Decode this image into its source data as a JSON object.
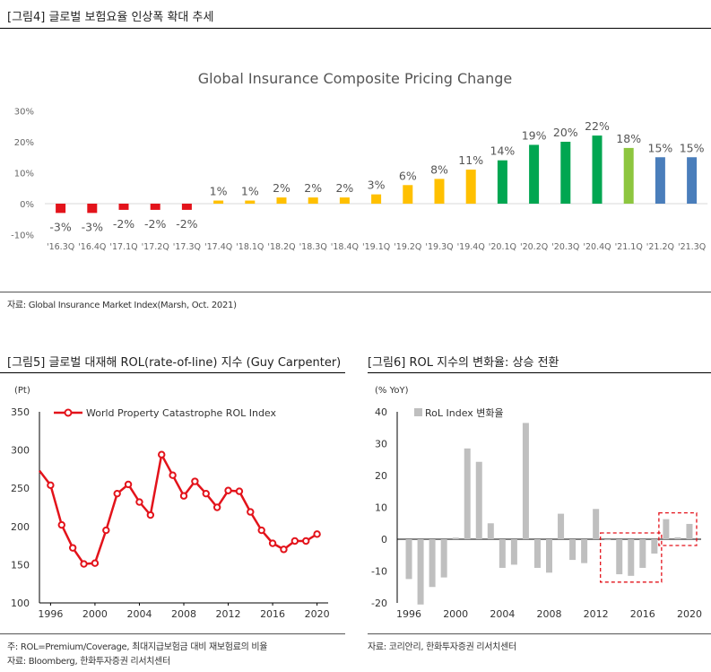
{
  "fig4": {
    "caption": "[그림4]    글로벌 보험요율 인상폭 확대 추세",
    "source": "자료: Global Insurance Market Index(Marsh, Oct. 2021)"
  },
  "fig5": {
    "caption": "[그림5]    글로벌 대재해 ROL(rate-of-line) 지수 (Guy Carpenter)",
    "note": "주: ROL=Premium/Coverage, 최대지급보험금 대비 재보험료의 비율",
    "source": "자료: Bloomberg, 한화투자증권 리서치센터"
  },
  "fig6": {
    "caption": "[그림6]    ROL 지수의 변화율: 상승 전환",
    "source": "자료: 코리안리, 한화투자증권 리서치센터"
  },
  "colors": {
    "red": "#e3131b",
    "yellow": "#ffc000",
    "green": "#00a651",
    "lightgreen": "#8dc63f",
    "blue": "#4a7ebb",
    "gray": "#bfbfbf",
    "line": "#e3131b"
  },
  "chart_data": [
    {
      "id": "fig4",
      "type": "bar",
      "title": "Global Insurance Composite Pricing Change",
      "categories": [
        "'16.3Q",
        "'16.4Q",
        "'17.1Q",
        "'17.2Q",
        "'17.3Q",
        "'17.4Q",
        "'18.1Q",
        "'18.2Q",
        "'18.3Q",
        "'18.4Q",
        "'19.1Q",
        "'19.2Q",
        "'19.3Q",
        "'19.4Q",
        "'20.1Q",
        "'20.2Q",
        "'20.3Q",
        "'20.4Q",
        "'21.1Q",
        "'21.2Q",
        "'21.3Q"
      ],
      "values": [
        -3,
        -3,
        -2,
        -2,
        -2,
        1,
        1,
        2,
        2,
        2,
        3,
        6,
        8,
        11,
        14,
        19,
        20,
        22,
        18,
        15,
        15
      ],
      "data_labels": [
        "-3%",
        "-3%",
        "-2%",
        "-2%",
        "-2%",
        "1%",
        "1%",
        "2%",
        "2%",
        "2%",
        "3%",
        "6%",
        "8%",
        "11%",
        "14%",
        "19%",
        "20%",
        "22%",
        "18%",
        "15%",
        "15%"
      ],
      "bar_colors": [
        "red",
        "red",
        "red",
        "red",
        "red",
        "yellow",
        "yellow",
        "yellow",
        "yellow",
        "yellow",
        "yellow",
        "yellow",
        "yellow",
        "yellow",
        "green",
        "green",
        "green",
        "green",
        "lightgreen",
        "blue",
        "blue"
      ],
      "ylim": [
        -10,
        30
      ],
      "yticks": [
        -10,
        0,
        10,
        20,
        30
      ],
      "ytick_labels": [
        "-10%",
        "0%",
        "10%",
        "20%",
        "30%"
      ],
      "grid": false
    },
    {
      "id": "fig5",
      "type": "line",
      "ylabel": "(Pt)",
      "series": [
        {
          "name": "World Property Catastrophe ROL Index",
          "x": [
            1995,
            1996,
            1997,
            1998,
            1999,
            2000,
            2001,
            2002,
            2003,
            2004,
            2005,
            2006,
            2007,
            2008,
            2009,
            2010,
            2011,
            2012,
            2013,
            2014,
            2015,
            2016,
            2017,
            2018,
            2019,
            2020
          ],
          "values": [
            273,
            254,
            202,
            172,
            151,
            152,
            195,
            243,
            255,
            232,
            215,
            294,
            267,
            240,
            259,
            243,
            225,
            247,
            246,
            219,
            195,
            178,
            170,
            181,
            181,
            190
          ]
        }
      ],
      "xlim": [
        1995,
        2021
      ],
      "xticks": [
        1996,
        2000,
        2004,
        2008,
        2012,
        2016,
        2020
      ],
      "ylim": [
        100,
        350
      ],
      "yticks": [
        100,
        150,
        200,
        250,
        300,
        350
      ],
      "legend": "top"
    },
    {
      "id": "fig6",
      "type": "bar",
      "ylabel": "(% YoY)",
      "series": [
        {
          "name": "RoL Index 변화율",
          "x": [
            1996,
            1997,
            1998,
            1999,
            2000,
            2001,
            2002,
            2003,
            2004,
            2005,
            2006,
            2007,
            2008,
            2009,
            2010,
            2011,
            2012,
            2013,
            2014,
            2015,
            2016,
            2017,
            2018,
            2019,
            2020
          ],
          "values": [
            -12.5,
            -20.5,
            -15,
            -12,
            0.5,
            28.5,
            24.3,
            5,
            -9,
            -8,
            36.5,
            -9,
            -10.5,
            8,
            -6.5,
            -7.5,
            9.5,
            -0.3,
            -11,
            -11.5,
            -9,
            -4.5,
            6.3,
            0.6,
            4.8
          ]
        }
      ],
      "xlim": [
        1995,
        2021
      ],
      "xticks": [
        1996,
        2000,
        2004,
        2008,
        2012,
        2016,
        2020
      ],
      "ylim": [
        -20,
        40
      ],
      "yticks": [
        -20,
        -10,
        0,
        10,
        20,
        30,
        40
      ],
      "legend": "top-left",
      "highlight_ranges": [
        [
          2013,
          2017
        ],
        [
          2018,
          2020
        ]
      ]
    }
  ]
}
